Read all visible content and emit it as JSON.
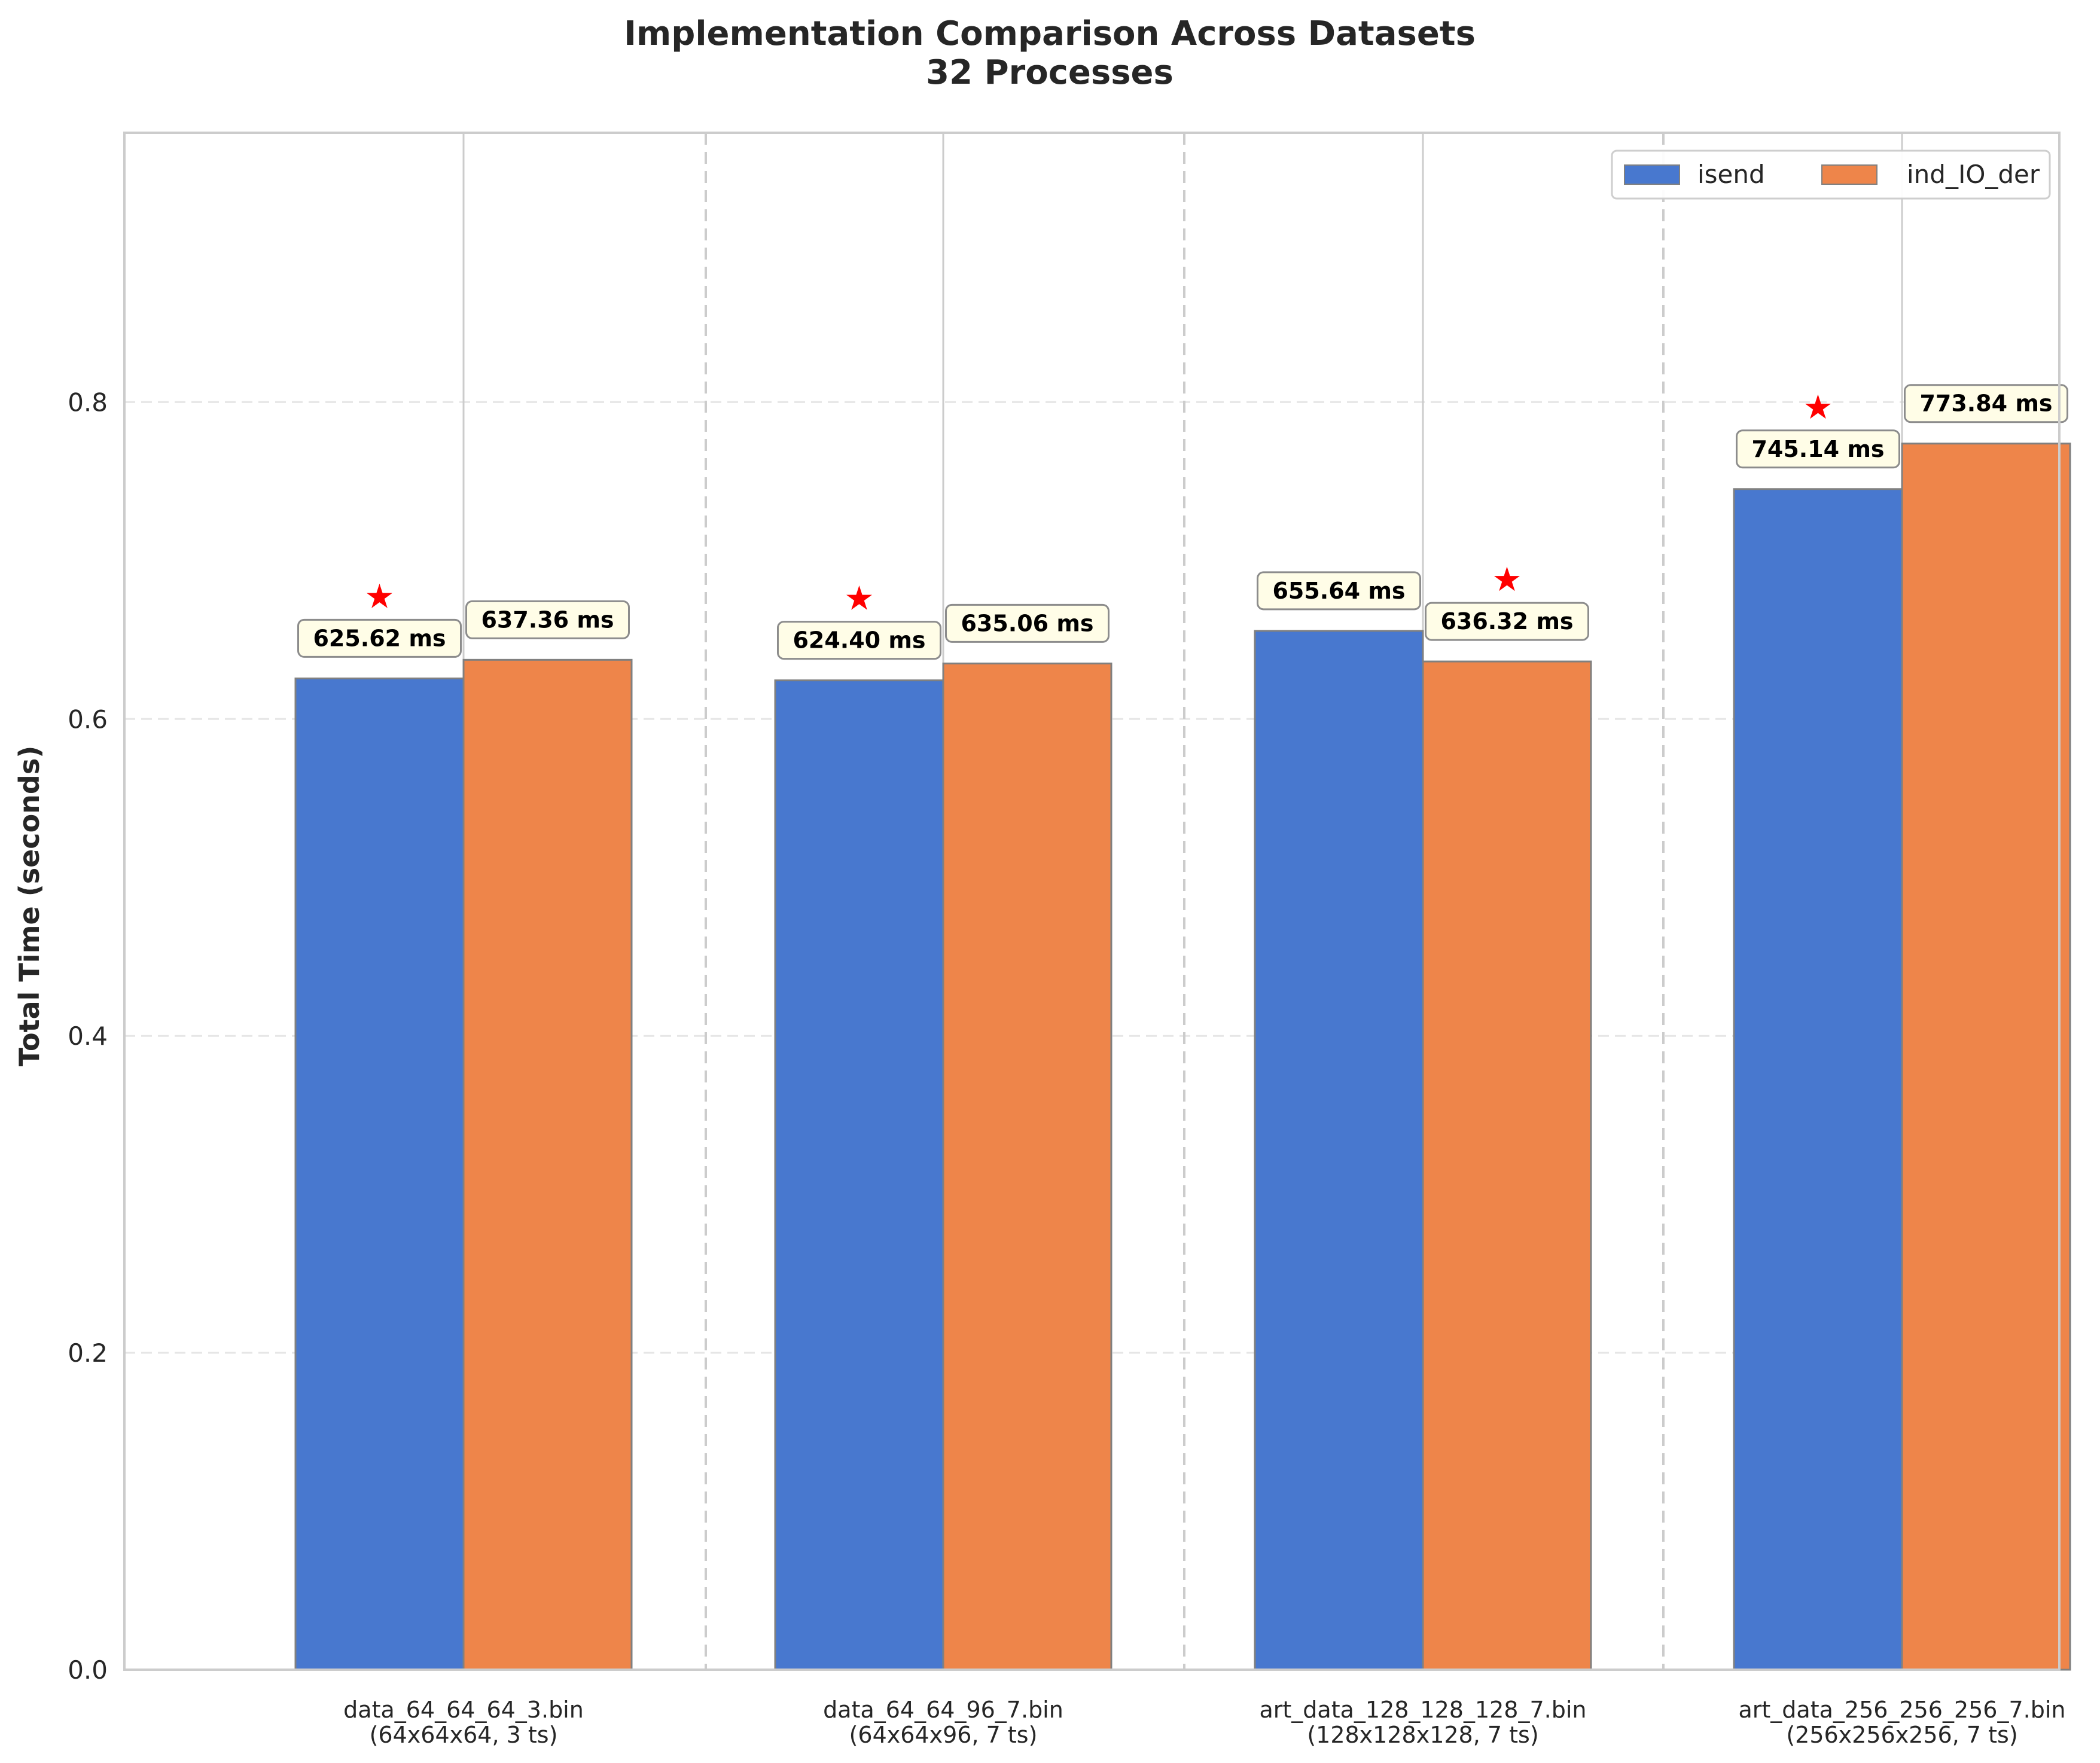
{
  "chart_data": {
    "type": "bar",
    "title": "Implementation Comparison Across Datasets",
    "subtitle": "32 Processes",
    "xlabel": "",
    "ylabel": "Total Time (seconds)",
    "ylim": [
      0,
      0.97
    ],
    "yticks": [
      0.0,
      0.2,
      0.4,
      0.6,
      0.8
    ],
    "ytick_labels": [
      "0.0",
      "0.2",
      "0.4",
      "0.6",
      "0.8"
    ],
    "grid": true,
    "legend_position": "top-right",
    "categories": [
      [
        "data_64_64_64_3.bin",
        "(64x64x64, 3 ts)"
      ],
      [
        "data_64_64_96_7.bin",
        "(64x64x96, 7 ts)"
      ],
      [
        "art_data_128_128_128_7.bin",
        "(128x128x128, 7 ts)"
      ],
      [
        "art_data_256_256_256_7.bin",
        "(256x256x256, 7 ts)"
      ]
    ],
    "series": [
      {
        "name": "isend",
        "color": "#4878cf",
        "values": [
          0.62562,
          0.6244,
          0.65564,
          0.74514
        ],
        "labels": [
          "625.62 ms",
          "624.40 ms",
          "655.64 ms",
          "745.14 ms"
        ]
      },
      {
        "name": "ind_IO_der",
        "color": "#ee854a",
        "values": [
          0.63736,
          0.63506,
          0.63632,
          0.77384
        ],
        "labels": [
          "637.36 ms",
          "635.06 ms",
          "636.32 ms",
          "773.84 ms"
        ]
      }
    ],
    "best_marker": {
      "symbol": "★",
      "color": "#ff0000",
      "series_index_per_category": [
        0,
        0,
        1,
        0
      ]
    },
    "label_box_color": "#fffde7",
    "bar_edge_color": "#808080"
  }
}
